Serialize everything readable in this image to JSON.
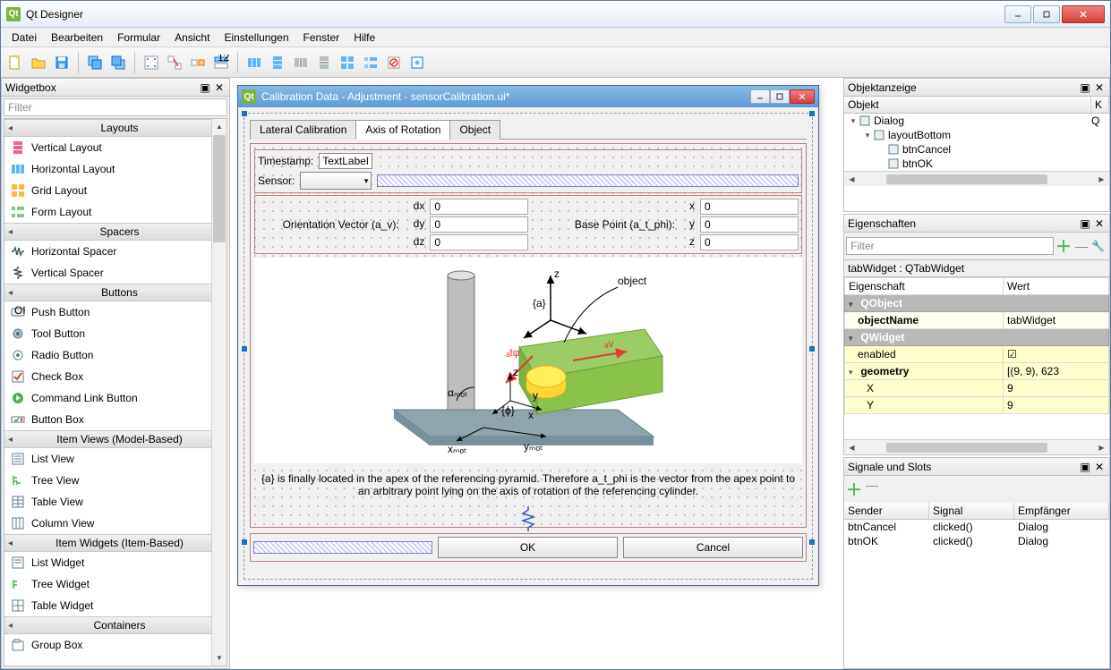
{
  "window": {
    "title": "Qt Designer"
  },
  "menubar": [
    "Datei",
    "Bearbeiten",
    "Formular",
    "Ansicht",
    "Einstellungen",
    "Fenster",
    "Hilfe"
  ],
  "widgetbox": {
    "title": "Widgetbox",
    "filter_placeholder": "Filter",
    "categories": [
      {
        "label": "Layouts",
        "items": [
          "Vertical Layout",
          "Horizontal Layout",
          "Grid Layout",
          "Form Layout"
        ]
      },
      {
        "label": "Spacers",
        "items": [
          "Horizontal Spacer",
          "Vertical Spacer"
        ]
      },
      {
        "label": "Buttons",
        "items": [
          "Push Button",
          "Tool Button",
          "Radio Button",
          "Check Box",
          "Command Link Button",
          "Button Box"
        ]
      },
      {
        "label": "Item Views (Model-Based)",
        "items": [
          "List View",
          "Tree View",
          "Table View",
          "Column View"
        ]
      },
      {
        "label": "Item Widgets (Item-Based)",
        "items": [
          "List Widget",
          "Tree Widget",
          "Table Widget"
        ]
      },
      {
        "label": "Containers",
        "items": [
          "Group Box"
        ]
      }
    ]
  },
  "designwin": {
    "title": "Calibration Data - Adjustment - sensorCalibration.ui*",
    "tabs": [
      "Lateral Calibration",
      "Axis of Rotation",
      "Object"
    ],
    "active_tab": 1,
    "timestamp_label": "Timestamp:",
    "timestamp_value": "TextLabel",
    "sensor_label": "Sensor:",
    "orient_label": "Orientation Vector (a_v):",
    "base_label": "Base Point (a_t_phi):",
    "orient_rows": [
      {
        "k": "dx",
        "v": "0"
      },
      {
        "k": "dy",
        "v": "0"
      },
      {
        "k": "dz",
        "v": "0"
      }
    ],
    "base_rows": [
      {
        "k": "x",
        "v": "0"
      },
      {
        "k": "y",
        "v": "0"
      },
      {
        "k": "z",
        "v": "0"
      }
    ],
    "diagram": {
      "object_label": "object",
      "axes": {
        "z": "z",
        "x": "x",
        "y": "y"
      },
      "a_label": "{a}",
      "phi_label": "{ϕ}",
      "atphi": "ₐtφ",
      "av": "ₐv",
      "xmot": "xₘₒₜ",
      "ymot": "yₘₒₜ",
      "alphamot": "αₘₒₜ",
      "colors": {
        "green": "#9ccc65",
        "yellow": "#fdd835",
        "floor": "#90a4ae",
        "pillar": "#bdbdbd",
        "red": "#e53935"
      }
    },
    "help": "{a} is finally located in the apex of the referencing pyramid. Therefore a_t_phi is the vector from the apex point to an arbitrary point lying on the axis of rotation of the referencing cylinder.",
    "ok": "OK",
    "cancel": "Cancel"
  },
  "objecttree": {
    "title": "Objektanzeige",
    "cols": {
      "object": "Objekt",
      "class": "K"
    },
    "rows": [
      {
        "indent": 0,
        "exp": "▾",
        "name": "Dialog",
        "cls": "Q"
      },
      {
        "indent": 1,
        "exp": "▾",
        "name": "layoutBottom",
        "cls": ""
      },
      {
        "indent": 2,
        "exp": "",
        "name": "btnCancel",
        "cls": ""
      },
      {
        "indent": 2,
        "exp": "",
        "name": "btnOK",
        "cls": ""
      }
    ]
  },
  "properties": {
    "title": "Eigenschaften",
    "filter_placeholder": "Filter",
    "header": "tabWidget : QTabWidget",
    "cols": {
      "prop": "Eigenschaft",
      "val": "Wert"
    },
    "rows": [
      {
        "type": "group",
        "name": "QObject"
      },
      {
        "type": "prop",
        "name": "objectName",
        "val": "tabWidget",
        "bold": true
      },
      {
        "type": "group",
        "name": "QWidget"
      },
      {
        "type": "prop",
        "name": "enabled",
        "val": "☑",
        "yellow": true
      },
      {
        "type": "expand",
        "name": "geometry",
        "val": "[(9, 9), 623",
        "bold": true,
        "yellow": true
      },
      {
        "type": "sub",
        "name": "X",
        "val": "9",
        "yellow": true
      },
      {
        "type": "sub",
        "name": "Y",
        "val": "9",
        "yellow": true
      }
    ]
  },
  "signals": {
    "title": "Signale und Slots",
    "cols": {
      "sender": "Sender",
      "signal": "Signal",
      "receiver": "Empfänger"
    },
    "rows": [
      {
        "sender": "btnCancel",
        "signal": "clicked()",
        "receiver": "Dialog"
      },
      {
        "sender": "btnOK",
        "signal": "clicked()",
        "receiver": "Dialog"
      }
    ]
  }
}
